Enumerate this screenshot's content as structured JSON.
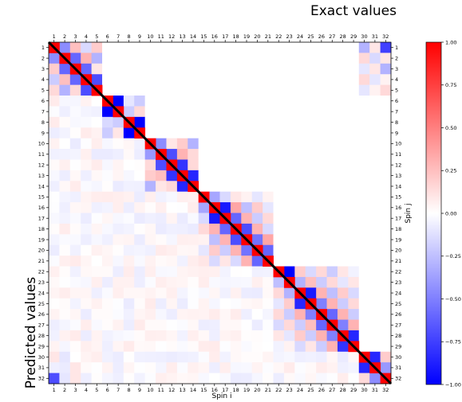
{
  "chart_data": {
    "type": "heatmap",
    "title_top": "Exact values",
    "title_left": "Predicted values",
    "xlabel": "Spin i",
    "ylabel": "Spin j",
    "n": 32,
    "tick_labels": [
      "1",
      "2",
      "3",
      "4",
      "5",
      "6",
      "7",
      "8",
      "9",
      "10",
      "11",
      "12",
      "13",
      "14",
      "15",
      "16",
      "17",
      "18",
      "19",
      "20",
      "21",
      "22",
      "23",
      "24",
      "25",
      "26",
      "27",
      "28",
      "29",
      "30",
      "31",
      "32"
    ],
    "upper_triangle_source": "exact",
    "lower_triangle_source": "predicted",
    "diagonal_color": "#000000",
    "blocks": [
      [
        1,
        5
      ],
      [
        6,
        9
      ],
      [
        10,
        14
      ],
      [
        15,
        21
      ],
      [
        22,
        29
      ],
      [
        30,
        32
      ]
    ],
    "exact_values": [
      [
        1,
        2,
        -0.45
      ],
      [
        1,
        3,
        0.25
      ],
      [
        1,
        4,
        -0.15
      ],
      [
        1,
        5,
        0.2
      ],
      [
        2,
        3,
        -0.6
      ],
      [
        2,
        4,
        0.3
      ],
      [
        2,
        5,
        -0.3
      ],
      [
        3,
        4,
        -0.6
      ],
      [
        3,
        5,
        0.1
      ],
      [
        4,
        5,
        -0.7
      ],
      [
        6,
        7,
        -1.0
      ],
      [
        6,
        8,
        -0.1
      ],
      [
        6,
        9,
        -0.2
      ],
      [
        7,
        8,
        -0.2
      ],
      [
        7,
        9,
        0.15
      ],
      [
        8,
        9,
        -1.0
      ],
      [
        10,
        11,
        -0.45
      ],
      [
        10,
        12,
        0.1
      ],
      [
        10,
        13,
        0.2
      ],
      [
        10,
        14,
        -0.3
      ],
      [
        11,
        12,
        -0.7
      ],
      [
        11,
        13,
        0.3
      ],
      [
        11,
        14,
        0.15
      ],
      [
        12,
        13,
        -0.8
      ],
      [
        12,
        14,
        0.15
      ],
      [
        13,
        14,
        -0.85
      ],
      [
        15,
        16,
        -0.35
      ],
      [
        15,
        17,
        -0.15
      ],
      [
        15,
        18,
        0.1
      ],
      [
        15,
        19,
        0.05
      ],
      [
        15,
        20,
        -0.1
      ],
      [
        15,
        21,
        0.05
      ],
      [
        16,
        17,
        -0.9
      ],
      [
        16,
        18,
        0.35
      ],
      [
        16,
        19,
        -0.25
      ],
      [
        16,
        20,
        0.2
      ],
      [
        16,
        21,
        -0.1
      ],
      [
        17,
        18,
        -0.6
      ],
      [
        17,
        19,
        0.3
      ],
      [
        17,
        20,
        -0.2
      ],
      [
        17,
        21,
        0.15
      ],
      [
        18,
        19,
        -0.7
      ],
      [
        18,
        20,
        0.3
      ],
      [
        18,
        21,
        -0.15
      ],
      [
        19,
        20,
        -0.55
      ],
      [
        19,
        21,
        0.35
      ],
      [
        20,
        21,
        -0.6
      ],
      [
        22,
        23,
        -1.0
      ],
      [
        22,
        24,
        0.2
      ],
      [
        22,
        25,
        -0.15
      ],
      [
        22,
        26,
        0.15
      ],
      [
        22,
        27,
        -0.2
      ],
      [
        22,
        28,
        0.1
      ],
      [
        22,
        29,
        -0.05
      ],
      [
        23,
        24,
        -0.3
      ],
      [
        23,
        25,
        0.25
      ],
      [
        23,
        26,
        -0.2
      ],
      [
        23,
        27,
        0.15
      ],
      [
        23,
        28,
        -0.1
      ],
      [
        23,
        29,
        0.1
      ],
      [
        24,
        25,
        -0.9
      ],
      [
        24,
        26,
        0.3
      ],
      [
        24,
        27,
        -0.25
      ],
      [
        24,
        28,
        0.2
      ],
      [
        24,
        29,
        -0.15
      ],
      [
        25,
        26,
        -0.5
      ],
      [
        25,
        27,
        0.3
      ],
      [
        25,
        28,
        -0.2
      ],
      [
        25,
        29,
        0.15
      ],
      [
        26,
        27,
        -0.6
      ],
      [
        26,
        28,
        0.3
      ],
      [
        26,
        29,
        -0.2
      ],
      [
        27,
        28,
        -0.5
      ],
      [
        27,
        29,
        0.3
      ],
      [
        28,
        29,
        -0.85
      ],
      [
        30,
        31,
        -0.85
      ],
      [
        30,
        32,
        0.2
      ],
      [
        31,
        32,
        -0.4
      ],
      [
        1,
        30,
        -0.3
      ],
      [
        1,
        31,
        0.1
      ],
      [
        1,
        32,
        -0.75
      ],
      [
        2,
        30,
        0.15
      ],
      [
        2,
        31,
        -0.15
      ],
      [
        2,
        32,
        0.1
      ],
      [
        3,
        30,
        -0.1
      ],
      [
        3,
        31,
        0.1
      ],
      [
        3,
        32,
        -0.3
      ],
      [
        4,
        30,
        0.15
      ],
      [
        4,
        31,
        -0.1
      ],
      [
        4,
        32,
        0.05
      ],
      [
        5,
        30,
        -0.1
      ],
      [
        5,
        31,
        0.05
      ],
      [
        5,
        32,
        0.15
      ]
    ],
    "predicted_values": [
      [
        1,
        2,
        -0.45
      ],
      [
        1,
        3,
        0.2
      ],
      [
        1,
        4,
        -0.2
      ],
      [
        1,
        5,
        0.15
      ],
      [
        2,
        3,
        -0.6
      ],
      [
        2,
        4,
        0.25
      ],
      [
        2,
        5,
        -0.3
      ],
      [
        3,
        4,
        -0.6
      ],
      [
        3,
        5,
        0.15
      ],
      [
        4,
        5,
        -0.7
      ],
      [
        6,
        7,
        -1.0
      ],
      [
        6,
        8,
        -0.15
      ],
      [
        6,
        9,
        -0.2
      ],
      [
        7,
        8,
        -0.2
      ],
      [
        7,
        9,
        0.1
      ],
      [
        8,
        9,
        -1.0
      ],
      [
        10,
        11,
        -0.4
      ],
      [
        10,
        12,
        0.15
      ],
      [
        10,
        13,
        0.2
      ],
      [
        10,
        14,
        -0.3
      ],
      [
        11,
        12,
        -0.7
      ],
      [
        11,
        13,
        0.25
      ],
      [
        11,
        14,
        0.1
      ],
      [
        12,
        13,
        -0.8
      ],
      [
        12,
        14,
        0.15
      ],
      [
        13,
        14,
        -0.85
      ],
      [
        15,
        16,
        -0.35
      ],
      [
        15,
        17,
        -0.15
      ],
      [
        15,
        18,
        0.15
      ],
      [
        15,
        19,
        0.05
      ],
      [
        15,
        20,
        -0.1
      ],
      [
        15,
        21,
        0.1
      ],
      [
        16,
        17,
        -0.9
      ],
      [
        16,
        18,
        0.3
      ],
      [
        16,
        19,
        -0.25
      ],
      [
        16,
        20,
        0.2
      ],
      [
        16,
        21,
        -0.15
      ],
      [
        17,
        18,
        -0.6
      ],
      [
        17,
        19,
        0.3
      ],
      [
        17,
        20,
        -0.2
      ],
      [
        17,
        21,
        0.1
      ],
      [
        18,
        19,
        -0.7
      ],
      [
        18,
        20,
        0.3
      ],
      [
        18,
        21,
        -0.15
      ],
      [
        19,
        20,
        -0.55
      ],
      [
        19,
        21,
        0.3
      ],
      [
        20,
        21,
        -0.6
      ],
      [
        22,
        23,
        -0.25
      ],
      [
        22,
        24,
        0.15
      ],
      [
        22,
        25,
        -0.1
      ],
      [
        22,
        26,
        0.15
      ],
      [
        22,
        27,
        -0.15
      ],
      [
        22,
        28,
        0.1
      ],
      [
        22,
        29,
        -0.05
      ],
      [
        23,
        24,
        -0.3
      ],
      [
        23,
        25,
        0.2
      ],
      [
        23,
        26,
        -0.2
      ],
      [
        23,
        27,
        0.15
      ],
      [
        23,
        28,
        -0.1
      ],
      [
        23,
        29,
        0.05
      ],
      [
        24,
        25,
        -0.85
      ],
      [
        24,
        26,
        0.3
      ],
      [
        24,
        27,
        -0.2
      ],
      [
        24,
        28,
        0.2
      ],
      [
        24,
        29,
        -0.15
      ],
      [
        25,
        26,
        -0.5
      ],
      [
        25,
        27,
        0.25
      ],
      [
        25,
        28,
        -0.2
      ],
      [
        25,
        29,
        0.1
      ],
      [
        26,
        27,
        -0.6
      ],
      [
        26,
        28,
        0.3
      ],
      [
        26,
        29,
        -0.2
      ],
      [
        27,
        28,
        -0.5
      ],
      [
        27,
        29,
        0.3
      ],
      [
        28,
        29,
        -0.8
      ],
      [
        30,
        31,
        -0.85
      ],
      [
        30,
        32,
        0.15
      ],
      [
        31,
        32,
        -0.45
      ],
      [
        1,
        32,
        -0.7
      ],
      [
        2,
        30,
        -0.1
      ],
      [
        3,
        31,
        0.1
      ],
      [
        1,
        30,
        0.1
      ],
      [
        2,
        32,
        -0.1
      ],
      [
        3,
        32,
        0.1
      ]
    ],
    "colorbar": {
      "min": -1.0,
      "max": 1.0,
      "colormap": "bwr",
      "ticks": [
        -1.0,
        -0.75,
        -0.5,
        -0.25,
        0.0,
        0.25,
        0.5,
        0.75,
        1.0
      ],
      "tick_labels": [
        "−1.00",
        "−0.75",
        "−0.50",
        "−0.25",
        "0.00",
        "0.25",
        "0.50",
        "0.75",
        "1.00"
      ]
    }
  }
}
